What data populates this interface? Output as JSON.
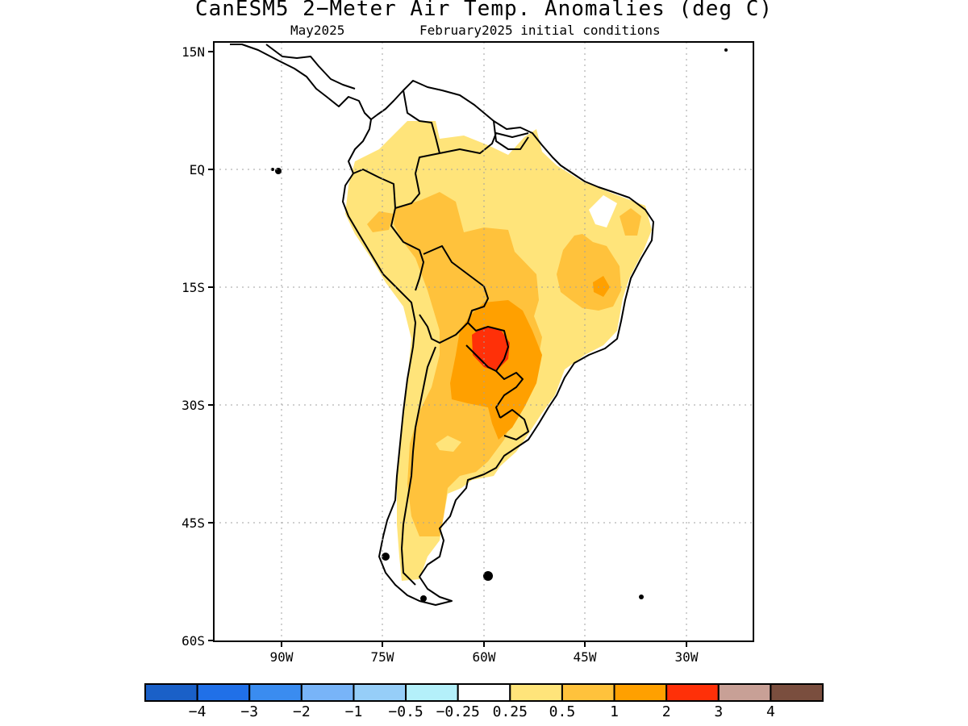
{
  "title": "CanESM5 2−Meter Air Temp. Anomalies (deg C)",
  "subtitle_left": "May2025",
  "subtitle_right": "February2025 initial conditions",
  "axes": {
    "lat_labels": [
      "15N",
      "EQ",
      "15S",
      "30S",
      "45S",
      "60S"
    ],
    "lon_labels": [
      "90W",
      "75W",
      "60W",
      "45W",
      "30W"
    ]
  },
  "colorbar": {
    "colors": [
      "#1a60c8",
      "#2070e8",
      "#3a8cf0",
      "#78b4f8",
      "#96cef8",
      "#b4f0fa",
      "#ffffff",
      "#ffe47a",
      "#ffc23c",
      "#ffa000",
      "#ff3008",
      "#c8a096",
      "#7a4e3e"
    ],
    "labels": [
      "−4",
      "−3",
      "−2",
      "−1",
      "−0.5",
      "−0.25",
      "0.25",
      "0.5",
      "1",
      "2",
      "3",
      "4"
    ]
  },
  "colors": {
    "class_0_25_to_0_5": "#ffe47a",
    "class_0_5_to_1": "#ffc23c",
    "class_1_to_2": "#ffa000",
    "class_2_to_3": "#ff3008"
  }
}
